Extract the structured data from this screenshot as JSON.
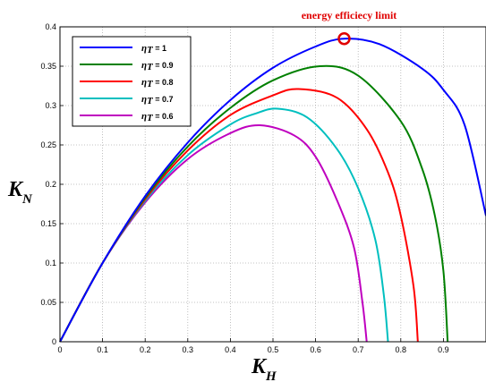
{
  "chart_data": {
    "type": "line",
    "xlabel": "K",
    "xlabel_sub": "H",
    "ylabel": "K",
    "ylabel_sub": "N",
    "xlim": [
      0,
      1
    ],
    "ylim": [
      0,
      0.4
    ],
    "x_ticks": [
      "0",
      "0.1",
      "0.2",
      "0.3",
      "0.4",
      "0.5",
      "0.6",
      "0.7",
      "0.8",
      "0.9"
    ],
    "y_ticks": [
      "0",
      "0.05",
      "0.1",
      "0.15",
      "0.2",
      "0.25",
      "0.3",
      "0.35",
      "0.4"
    ],
    "grid": true,
    "legend_position": "top-left",
    "legend_symbol": "η",
    "legend_sub": "T",
    "series": [
      {
        "name": "= 1",
        "color": "#0000ff",
        "x": [
          0,
          0.1,
          0.2,
          0.3,
          0.4,
          0.5,
          0.6,
          0.667,
          0.75,
          0.85,
          0.9,
          0.95,
          1.0
        ],
        "y": [
          0,
          0.1,
          0.185,
          0.253,
          0.307,
          0.348,
          0.375,
          0.385,
          0.378,
          0.347,
          0.32,
          0.275,
          0.16
        ]
      },
      {
        "name": "= 0.9",
        "color": "#008000",
        "x": [
          0,
          0.1,
          0.2,
          0.3,
          0.4,
          0.5,
          0.61,
          0.7,
          0.8,
          0.85,
          0.88,
          0.9,
          0.91
        ],
        "y": [
          0,
          0.1,
          0.183,
          0.248,
          0.297,
          0.332,
          0.35,
          0.338,
          0.28,
          0.22,
          0.16,
          0.09,
          0
        ]
      },
      {
        "name": "= 0.8",
        "color": "#ff0000",
        "x": [
          0,
          0.1,
          0.2,
          0.3,
          0.4,
          0.5,
          0.56,
          0.65,
          0.72,
          0.77,
          0.8,
          0.83,
          0.84
        ],
        "y": [
          0,
          0.1,
          0.181,
          0.243,
          0.288,
          0.313,
          0.321,
          0.31,
          0.27,
          0.215,
          0.16,
          0.07,
          0
        ]
      },
      {
        "name": "= 0.7",
        "color": "#00bfbf",
        "x": [
          0,
          0.1,
          0.2,
          0.3,
          0.4,
          0.46,
          0.51,
          0.58,
          0.65,
          0.7,
          0.74,
          0.76,
          0.77
        ],
        "y": [
          0,
          0.1,
          0.179,
          0.237,
          0.276,
          0.29,
          0.296,
          0.285,
          0.245,
          0.195,
          0.13,
          0.06,
          0
        ]
      },
      {
        "name": "= 0.6",
        "color": "#bf00bf",
        "x": [
          0,
          0.1,
          0.2,
          0.3,
          0.4,
          0.47,
          0.55,
          0.6,
          0.65,
          0.69,
          0.71,
          0.72
        ],
        "y": [
          0,
          0.1,
          0.177,
          0.232,
          0.265,
          0.275,
          0.262,
          0.235,
          0.18,
          0.12,
          0.05,
          0
        ]
      }
    ],
    "annotations": [
      {
        "text": "energy efficiecy limit",
        "color": "#e00000",
        "x": 0.667,
        "y": 0.385
      }
    ]
  }
}
